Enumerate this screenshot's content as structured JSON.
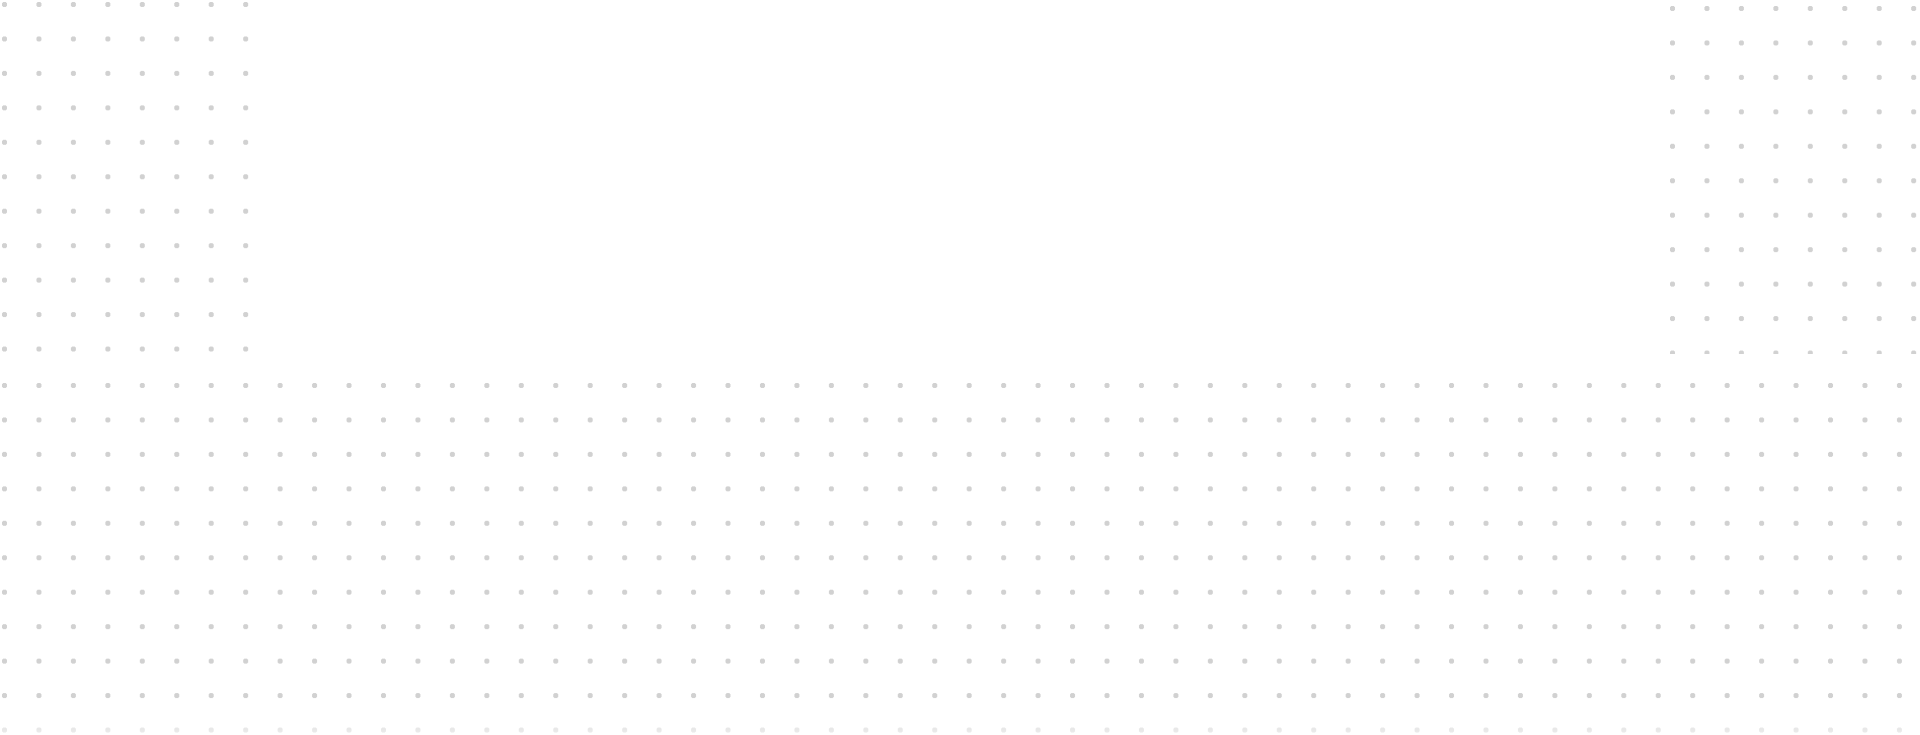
{
  "background": {
    "color": "#ffffff",
    "dot_color": "#d1d1d1"
  },
  "dot_regions": [
    {
      "name": "dots-top-left"
    },
    {
      "name": "dots-top-right"
    },
    {
      "name": "dots-bottom"
    }
  ]
}
